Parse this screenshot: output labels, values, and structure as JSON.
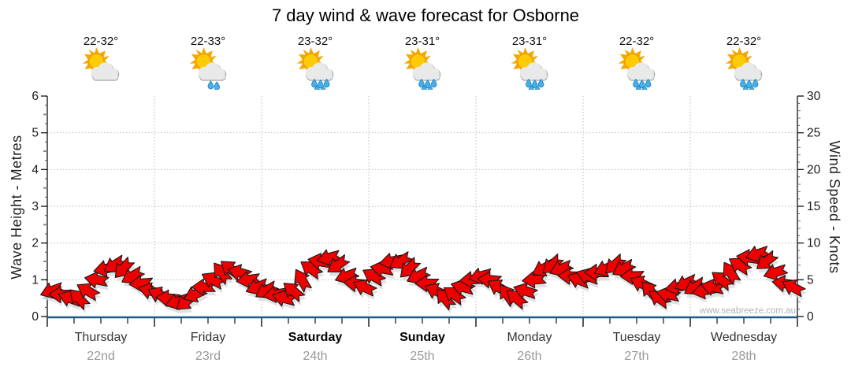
{
  "title": "7 day wind & wave forecast for Osborne",
  "watermark": "www.seabreeze.com.au",
  "axes": {
    "left_label": "Wave Height - Metres",
    "right_label": "Wind Speed - Knots"
  },
  "days": [
    {
      "name": "Thursday",
      "date": "22nd",
      "temp": "22-32°",
      "icon": "sun-cloud",
      "bold": false
    },
    {
      "name": "Friday",
      "date": "23rd",
      "temp": "22-33°",
      "icon": "sun-cloud-light-rain",
      "bold": false
    },
    {
      "name": "Saturday",
      "date": "24th",
      "temp": "23-32°",
      "icon": "sun-cloud-rain",
      "bold": true
    },
    {
      "name": "Sunday",
      "date": "25th",
      "temp": "23-31°",
      "icon": "sun-cloud-rain",
      "bold": true
    },
    {
      "name": "Monday",
      "date": "26th",
      "temp": "23-31°",
      "icon": "sun-cloud-rain",
      "bold": false
    },
    {
      "name": "Tuesday",
      "date": "27th",
      "temp": "22-32°",
      "icon": "sun-cloud-rain",
      "bold": false
    },
    {
      "name": "Wednesday",
      "date": "28th",
      "temp": "22-32°",
      "icon": "sun-cloud-rain",
      "bold": false
    }
  ],
  "colors": {
    "arrow_fill": "#ee0000",
    "arrow_outline": "#1a1a1a",
    "arrow_shadow": "#d8d8d8",
    "wave_line": "#1e5b84",
    "grid": "#bbbbbb",
    "axis": "#111111",
    "tick_text": "#1a1a1a",
    "date_text": "#999999",
    "watermark_text": "#b3b3b3"
  },
  "chart_data": {
    "type": "line",
    "title": "7 day wind & wave forecast for Osborne",
    "x_categories": [
      "Thursday 22nd",
      "Friday 23rd",
      "Saturday 24th",
      "Sunday 25th",
      "Monday 26th",
      "Tuesday 27th",
      "Wednesday 28th"
    ],
    "left_axis": {
      "label": "Wave Height - Metres",
      "ticks": [
        0,
        1,
        2,
        3,
        4,
        5,
        6
      ],
      "range": [
        0,
        6
      ]
    },
    "right_axis": {
      "label": "Wind Speed - Knots",
      "ticks": [
        0,
        5,
        10,
        15,
        20,
        25,
        30
      ],
      "range": [
        0,
        30
      ]
    },
    "grid": "dotted, horizontal at each metre (1-5), vertical at each day boundary",
    "legend": "none",
    "series": [
      {
        "name": "Wind speed",
        "style": "red direction arrows",
        "unit": "knots",
        "points_per_day": 12,
        "values": [
          3.5,
          3,
          2.5,
          2.5,
          3.5,
          5,
          6.5,
          7,
          6.5,
          5.5,
          4.5,
          3.5,
          3,
          2.5,
          2,
          2,
          3,
          4,
          5,
          6,
          6.5,
          6,
          5,
          4,
          3.5,
          3,
          2.5,
          3.5,
          5,
          6.5,
          7.5,
          8,
          7,
          5.5,
          4.5,
          4,
          5.5,
          6.5,
          7.5,
          7.5,
          6.5,
          5.5,
          4.5,
          3.5,
          2.5,
          3,
          4,
          5,
          5.5,
          5,
          4,
          3,
          2.5,
          3.5,
          5,
          6.5,
          7,
          6.5,
          5.5,
          5,
          5.5,
          6,
          6.5,
          7,
          6.5,
          5.5,
          4.5,
          3.5,
          2.5,
          3,
          4,
          4.5,
          4,
          3.5,
          4,
          5,
          6,
          7,
          8,
          8.5,
          7.5,
          6,
          4.5,
          4
        ],
        "direction_deg": [
          160,
          180,
          200,
          225,
          210,
          190,
          168,
          148,
          132,
          150,
          175,
          195,
          205,
          185,
          162,
          140,
          155,
          180,
          208,
          232,
          218,
          196,
          172,
          158,
          150,
          170,
          195,
          220,
          240,
          215,
          190,
          165,
          145,
          160,
          185,
          205,
          210,
          190,
          170,
          150,
          135,
          155,
          180,
          205,
          230,
          215,
          195,
          175,
          165,
          185,
          210,
          235,
          220,
          198,
          175,
          152,
          138,
          158,
          182,
          202,
          200,
          180,
          158,
          138,
          152,
          178,
          205,
          228,
          215,
          192,
          170,
          155,
          148,
          168,
          192,
          218,
          238,
          212,
          188,
          162,
          142,
          162,
          188,
          208
        ]
      },
      {
        "name": "Wave height",
        "style": "dark blue line (flat along baseline)",
        "unit": "metres",
        "constant_value": 0.05
      }
    ],
    "daily_summary": [
      {
        "day": "Thursday 22nd",
        "temp": "22-32°",
        "weather": "partly cloudy"
      },
      {
        "day": "Friday 23rd",
        "temp": "22-33°",
        "weather": "light showers"
      },
      {
        "day": "Saturday 24th",
        "temp": "23-32°",
        "weather": "showers"
      },
      {
        "day": "Sunday 25th",
        "temp": "23-31°",
        "weather": "showers"
      },
      {
        "day": "Monday 26th",
        "temp": "23-31°",
        "weather": "showers"
      },
      {
        "day": "Tuesday 27th",
        "temp": "22-32°",
        "weather": "showers"
      },
      {
        "day": "Wednesday 28th",
        "temp": "22-32°",
        "weather": "showers"
      }
    ],
    "watermark": "www.seabreeze.com.au"
  }
}
